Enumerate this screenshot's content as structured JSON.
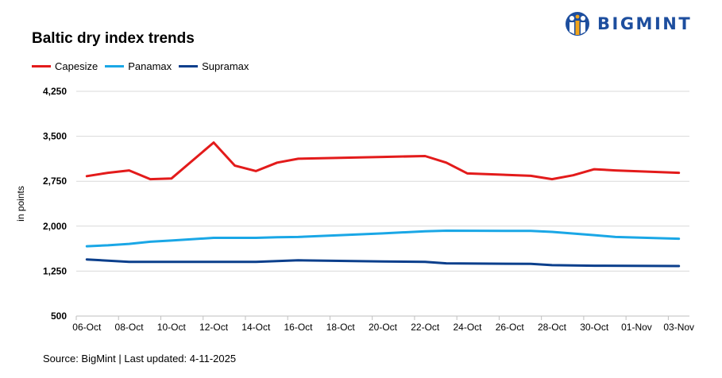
{
  "title": "Baltic dry index trends",
  "brand": {
    "name": "BIGMINT",
    "color": "#1d4e9e"
  },
  "source": "Source: BigMint | Last updated: 4-11-2025",
  "chart_data": {
    "type": "line",
    "ylabel": "in points",
    "ylim": [
      500,
      4250
    ],
    "yticks": [
      500,
      1250,
      2000,
      2750,
      3500,
      4250
    ],
    "ytick_labels": [
      "500",
      "1,250",
      "2,000",
      "2,750",
      "3,500",
      "4,250"
    ],
    "x": [
      "06-Oct",
      "07-Oct",
      "08-Oct",
      "09-Oct",
      "10-Oct",
      "11-Oct",
      "12-Oct",
      "13-Oct",
      "14-Oct",
      "15-Oct",
      "16-Oct",
      "17-Oct",
      "18-Oct",
      "19-Oct",
      "20-Oct",
      "21-Oct",
      "22-Oct",
      "23-Oct",
      "24-Oct",
      "25-Oct",
      "26-Oct",
      "27-Oct",
      "28-Oct",
      "29-Oct",
      "30-Oct",
      "31-Oct",
      "01-Nov",
      "02-Nov",
      "03-Nov"
    ],
    "xtick_labels": [
      "06-Oct",
      "08-Oct",
      "10-Oct",
      "12-Oct",
      "14-Oct",
      "16-Oct",
      "18-Oct",
      "20-Oct",
      "22-Oct",
      "24-Oct",
      "26-Oct",
      "28-Oct",
      "30-Oct",
      "01-Nov",
      "03-Nov"
    ],
    "series": [
      {
        "name": "Capesize",
        "color": "#e31b1b",
        "points": [
          [
            "06-Oct",
            2835
          ],
          [
            "07-Oct",
            2890
          ],
          [
            "08-Oct",
            2930
          ],
          [
            "09-Oct",
            2785
          ],
          [
            "10-Oct",
            2795
          ],
          [
            "12-Oct",
            3395
          ],
          [
            "13-Oct",
            3010
          ],
          [
            "14-Oct",
            2920
          ],
          [
            "15-Oct",
            3060
          ],
          [
            "16-Oct",
            3125
          ],
          [
            "20-Oct",
            3155
          ],
          [
            "22-Oct",
            3170
          ],
          [
            "23-Oct",
            3060
          ],
          [
            "24-Oct",
            2880
          ],
          [
            "27-Oct",
            2840
          ],
          [
            "28-Oct",
            2785
          ],
          [
            "29-Oct",
            2850
          ],
          [
            "30-Oct",
            2950
          ],
          [
            "31-Oct",
            2930
          ],
          [
            "03-Nov",
            2890
          ]
        ]
      },
      {
        "name": "Panamax",
        "color": "#1aa7e6",
        "points": [
          [
            "06-Oct",
            1665
          ],
          [
            "07-Oct",
            1680
          ],
          [
            "08-Oct",
            1705
          ],
          [
            "09-Oct",
            1740
          ],
          [
            "10-Oct",
            1760
          ],
          [
            "12-Oct",
            1805
          ],
          [
            "14-Oct",
            1805
          ],
          [
            "15-Oct",
            1815
          ],
          [
            "16-Oct",
            1820
          ],
          [
            "18-Oct",
            1850
          ],
          [
            "20-Oct",
            1880
          ],
          [
            "22-Oct",
            1915
          ],
          [
            "23-Oct",
            1925
          ],
          [
            "27-Oct",
            1920
          ],
          [
            "28-Oct",
            1905
          ],
          [
            "30-Oct",
            1850
          ],
          [
            "31-Oct",
            1820
          ],
          [
            "03-Nov",
            1790
          ]
        ]
      },
      {
        "name": "Supramax",
        "color": "#0b3f8c",
        "points": [
          [
            "06-Oct",
            1445
          ],
          [
            "08-Oct",
            1405
          ],
          [
            "14-Oct",
            1405
          ],
          [
            "16-Oct",
            1430
          ],
          [
            "20-Oct",
            1410
          ],
          [
            "22-Oct",
            1405
          ],
          [
            "23-Oct",
            1380
          ],
          [
            "27-Oct",
            1370
          ],
          [
            "28-Oct",
            1350
          ],
          [
            "29-Oct",
            1345
          ],
          [
            "30-Oct",
            1340
          ],
          [
            "03-Nov",
            1335
          ]
        ]
      }
    ]
  }
}
